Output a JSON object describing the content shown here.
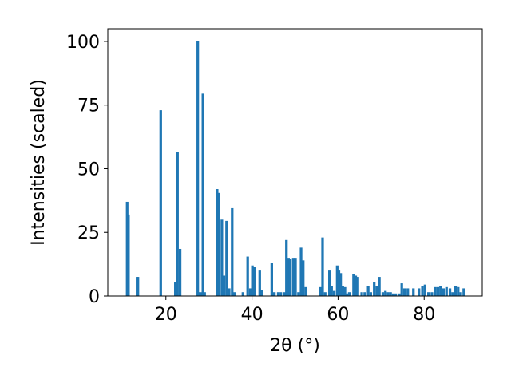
{
  "chart_data": {
    "type": "bar",
    "title": "",
    "xlabel": "2θ (°)",
    "ylabel": "Intensities (scaled)",
    "xlim": [
      6.5,
      93.5
    ],
    "ylim": [
      0,
      105
    ],
    "xticks": [
      20,
      40,
      60,
      80
    ],
    "yticks": [
      0,
      25,
      50,
      75,
      100
    ],
    "xtick_labels": [
      "20",
      "40",
      "60",
      "80"
    ],
    "ytick_labels": [
      "0",
      "25",
      "50",
      "75",
      "100"
    ],
    "bar_width_deg": 0.6,
    "grid": false,
    "legend": false,
    "color": "#1f77b4",
    "x": [
      11.0,
      11.3,
      13.3,
      13.5,
      18.8,
      22.2,
      22.7,
      23.3,
      27.4,
      27.7,
      28.1,
      28.6,
      29.0,
      31.9,
      32.3,
      33.0,
      33.5,
      34.1,
      34.7,
      35.4,
      35.9,
      37.9,
      39.0,
      39.6,
      40.1,
      40.6,
      41.8,
      42.3,
      44.6,
      45.2,
      46.1,
      46.7,
      47.6,
      48.0,
      48.5,
      48.9,
      49.6,
      50.1,
      50.8,
      51.4,
      51.9,
      52.5,
      55.9,
      56.4,
      57.0,
      58.0,
      58.5,
      59.1,
      59.8,
      60.2,
      60.6,
      61.1,
      61.6,
      62.1,
      62.6,
      63.6,
      64.1,
      64.6,
      65.5,
      66.2,
      67.0,
      67.6,
      68.4,
      69.0,
      69.6,
      70.4,
      71.0,
      71.6,
      72.2,
      72.8,
      73.4,
      74.2,
      74.8,
      75.4,
      76.2,
      77.5,
      78.8,
      79.6,
      80.2,
      81.0,
      81.8,
      82.6,
      83.2,
      83.8,
      84.5,
      85.2,
      86.0,
      86.6,
      87.3,
      87.9,
      88.5,
      89.2
    ],
    "values": [
      37.0,
      32.0,
      7.5,
      7.5,
      73.0,
      5.5,
      56.5,
      18.5,
      100.0,
      1.5,
      1.5,
      79.5,
      1.5,
      42.0,
      40.5,
      30.0,
      8.0,
      29.5,
      3.0,
      34.5,
      1.5,
      1.5,
      15.5,
      3.0,
      12.0,
      11.5,
      10.0,
      2.5,
      13.0,
      1.5,
      1.5,
      1.5,
      1.5,
      22.0,
      15.0,
      14.5,
      15.0,
      15.0,
      1.5,
      19.0,
      14.0,
      3.5,
      3.5,
      23.0,
      1.5,
      10.0,
      4.0,
      2.0,
      12.0,
      10.0,
      9.0,
      4.0,
      3.5,
      1.0,
      1.5,
      8.5,
      8.0,
      7.5,
      1.5,
      1.5,
      4.0,
      1.5,
      5.5,
      4.0,
      7.5,
      1.5,
      2.0,
      1.5,
      1.5,
      1.0,
      1.0,
      1.0,
      5.0,
      3.0,
      3.0,
      3.0,
      3.0,
      4.0,
      4.5,
      1.5,
      1.5,
      3.5,
      3.5,
      4.0,
      3.0,
      3.5,
      3.0,
      1.5,
      4.0,
      3.5,
      1.5,
      3.0
    ]
  }
}
